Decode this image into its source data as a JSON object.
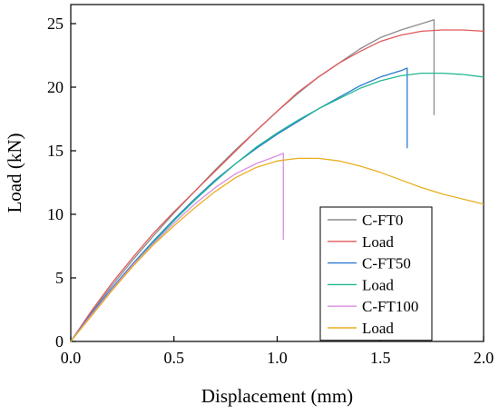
{
  "chart_data": {
    "type": "line",
    "title": "",
    "xlabel": "Displacement (mm)",
    "ylabel": "Load (kN)",
    "xlim": [
      0.0,
      2.0
    ],
    "ylim": [
      0,
      26.5
    ],
    "x_ticks": [
      "0.0",
      "0.5",
      "1.0",
      "1.5",
      "2.0"
    ],
    "x_tick_values": [
      0.0,
      0.5,
      1.0,
      1.5,
      2.0
    ],
    "y_ticks": [
      "0",
      "5",
      "10",
      "15",
      "20",
      "25"
    ],
    "y_tick_values": [
      0,
      5,
      10,
      15,
      20,
      25
    ],
    "grid": false,
    "legend_position": "bottom-right",
    "series": [
      {
        "name": "C-FT0",
        "color": "#8c8c8c",
        "points": [
          [
            0,
            0
          ],
          [
            0.1,
            2.3
          ],
          [
            0.2,
            4.4
          ],
          [
            0.3,
            6.4
          ],
          [
            0.4,
            8.3
          ],
          [
            0.5,
            10.1
          ],
          [
            0.6,
            11.8
          ],
          [
            0.7,
            13.5
          ],
          [
            0.8,
            15.1
          ],
          [
            0.9,
            16.6
          ],
          [
            1.0,
            18.1
          ],
          [
            1.1,
            19.5
          ],
          [
            1.2,
            20.8
          ],
          [
            1.3,
            21.9
          ],
          [
            1.4,
            23.0
          ],
          [
            1.5,
            23.9
          ],
          [
            1.6,
            24.5
          ],
          [
            1.7,
            25.0
          ],
          [
            1.76,
            25.3
          ],
          [
            1.76,
            17.8
          ]
        ]
      },
      {
        "name": "Load",
        "color": "#e05a5a",
        "points": [
          [
            0,
            0
          ],
          [
            0.1,
            2.4
          ],
          [
            0.2,
            4.6
          ],
          [
            0.3,
            6.6
          ],
          [
            0.4,
            8.5
          ],
          [
            0.5,
            10.2
          ],
          [
            0.6,
            11.8
          ],
          [
            0.7,
            13.4
          ],
          [
            0.8,
            15.0
          ],
          [
            0.9,
            16.6
          ],
          [
            1.0,
            18.1
          ],
          [
            1.1,
            19.6
          ],
          [
            1.2,
            20.8
          ],
          [
            1.3,
            21.9
          ],
          [
            1.4,
            22.8
          ],
          [
            1.5,
            23.6
          ],
          [
            1.6,
            24.1
          ],
          [
            1.7,
            24.4
          ],
          [
            1.8,
            24.5
          ],
          [
            1.9,
            24.5
          ],
          [
            2.0,
            24.4
          ]
        ]
      },
      {
        "name": "C-FT50",
        "color": "#2b7bd0",
        "points": [
          [
            0,
            0
          ],
          [
            0.1,
            2.2
          ],
          [
            0.2,
            4.2
          ],
          [
            0.3,
            6.1
          ],
          [
            0.4,
            7.9
          ],
          [
            0.5,
            9.6
          ],
          [
            0.6,
            11.2
          ],
          [
            0.7,
            12.7
          ],
          [
            0.8,
            14.0
          ],
          [
            0.9,
            15.2
          ],
          [
            1.0,
            16.3
          ],
          [
            1.1,
            17.3
          ],
          [
            1.2,
            18.3
          ],
          [
            1.3,
            19.2
          ],
          [
            1.4,
            20.1
          ],
          [
            1.5,
            20.8
          ],
          [
            1.6,
            21.3
          ],
          [
            1.63,
            21.5
          ],
          [
            1.63,
            15.2
          ]
        ]
      },
      {
        "name": "Load",
        "color": "#22b893",
        "points": [
          [
            0,
            0
          ],
          [
            0.1,
            2.1
          ],
          [
            0.2,
            4.1
          ],
          [
            0.3,
            6.0
          ],
          [
            0.4,
            7.8
          ],
          [
            0.5,
            9.5
          ],
          [
            0.6,
            11.1
          ],
          [
            0.7,
            12.6
          ],
          [
            0.8,
            14.0
          ],
          [
            0.9,
            15.3
          ],
          [
            1.0,
            16.4
          ],
          [
            1.1,
            17.4
          ],
          [
            1.2,
            18.3
          ],
          [
            1.3,
            19.1
          ],
          [
            1.4,
            19.9
          ],
          [
            1.5,
            20.5
          ],
          [
            1.6,
            20.9
          ],
          [
            1.7,
            21.1
          ],
          [
            1.8,
            21.1
          ],
          [
            1.9,
            21.0
          ],
          [
            2.0,
            20.8
          ]
        ]
      },
      {
        "name": "C-FT100",
        "color": "#d98ee0",
        "points": [
          [
            0,
            0
          ],
          [
            0.1,
            2.1
          ],
          [
            0.2,
            4.1
          ],
          [
            0.3,
            6.0
          ],
          [
            0.4,
            7.7
          ],
          [
            0.5,
            9.3
          ],
          [
            0.6,
            10.8
          ],
          [
            0.7,
            12.1
          ],
          [
            0.8,
            13.2
          ],
          [
            0.9,
            14.0
          ],
          [
            1.0,
            14.6
          ],
          [
            1.03,
            14.8
          ],
          [
            1.03,
            8.0
          ]
        ]
      },
      {
        "name": "Load",
        "color": "#e8b020",
        "points": [
          [
            0,
            0
          ],
          [
            0.1,
            2.0
          ],
          [
            0.2,
            4.0
          ],
          [
            0.3,
            5.9
          ],
          [
            0.4,
            7.6
          ],
          [
            0.5,
            9.1
          ],
          [
            0.6,
            10.5
          ],
          [
            0.7,
            11.8
          ],
          [
            0.8,
            12.9
          ],
          [
            0.9,
            13.7
          ],
          [
            1.0,
            14.2
          ],
          [
            1.1,
            14.4
          ],
          [
            1.2,
            14.4
          ],
          [
            1.3,
            14.2
          ],
          [
            1.4,
            13.8
          ],
          [
            1.5,
            13.3
          ],
          [
            1.6,
            12.7
          ],
          [
            1.7,
            12.1
          ],
          [
            1.8,
            11.6
          ],
          [
            1.9,
            11.2
          ],
          [
            2.0,
            10.8
          ]
        ]
      }
    ]
  }
}
